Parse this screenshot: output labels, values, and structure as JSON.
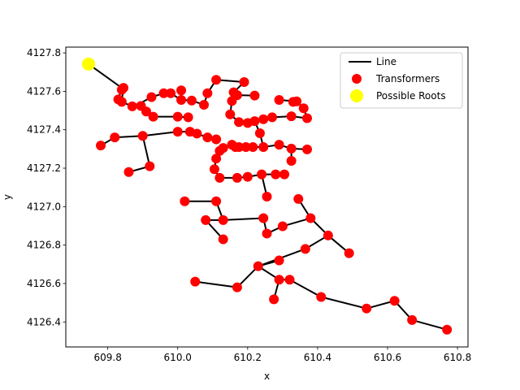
{
  "chart_data": {
    "type": "scatter",
    "title": "",
    "xlabel": "x",
    "ylabel": "y",
    "xlim": [
      609.68,
      610.83
    ],
    "ylim": [
      4126.27,
      4127.83
    ],
    "xticks": [
      609.8,
      610.0,
      610.2,
      610.4,
      610.6,
      610.8
    ],
    "xtick_labels": [
      "609.8",
      "610.0",
      "610.2",
      "610.4",
      "610.6",
      "610.8"
    ],
    "yticks": [
      4126.4,
      4126.6,
      4126.8,
      4127.0,
      4127.2,
      4127.4,
      4127.6,
      4127.8
    ],
    "ytick_labels": [
      "4126.4",
      "4126.6",
      "4126.8",
      "4127.0",
      "4127.2",
      "4127.4",
      "4127.6",
      "4127.8"
    ],
    "grid": false,
    "legend_position": "upper-right",
    "colors": {
      "line": "#000000",
      "transformers": "#ff0000",
      "roots": "#ffff00"
    },
    "legend": [
      {
        "label": "Line",
        "kind": "line",
        "color": "#000000"
      },
      {
        "label": "Transformers",
        "kind": "marker",
        "color": "#ff0000"
      },
      {
        "label": "Possible Roots",
        "kind": "marker",
        "color": "#ffff00"
      }
    ],
    "lines": [
      [
        [
          609.745,
          4127.742
        ],
        [
          609.84,
          4127.618
        ],
        [
          609.83,
          4127.558
        ],
        [
          609.84,
          4127.545
        ],
        [
          609.87,
          4127.522
        ],
        [
          609.895,
          4127.524
        ],
        [
          609.91,
          4127.495
        ],
        [
          609.93,
          4127.468
        ],
        [
          610.0,
          4127.468
        ],
        [
          610.03,
          4127.465
        ]
      ],
      [
        [
          609.845,
          4127.608
        ],
        [
          609.84,
          4127.558
        ]
      ],
      [
        [
          609.87,
          4127.522
        ],
        [
          609.9,
          4127.545
        ],
        [
          609.925,
          4127.57
        ],
        [
          609.96,
          4127.59
        ],
        [
          609.98,
          4127.59
        ],
        [
          610.01,
          4127.555
        ],
        [
          610.04,
          4127.552
        ],
        [
          610.075,
          4127.53
        ],
        [
          610.085,
          4127.59
        ],
        [
          610.11,
          4127.66
        ],
        [
          610.19,
          4127.648
        ],
        [
          610.16,
          4127.595
        ],
        [
          610.155,
          4127.55
        ],
        [
          610.15,
          4127.48
        ],
        [
          610.175,
          4127.44
        ],
        [
          610.2,
          4127.435
        ],
        [
          610.22,
          4127.445
        ],
        [
          610.245,
          4127.455
        ],
        [
          610.27,
          4127.465
        ],
        [
          610.325,
          4127.47
        ],
        [
          610.37,
          4127.46
        ]
      ],
      [
        [
          610.01,
          4127.605
        ],
        [
          610.01,
          4127.555
        ]
      ],
      [
        [
          610.17,
          4127.58
        ],
        [
          610.22,
          4127.578
        ]
      ],
      [
        [
          610.29,
          4127.555
        ],
        [
          610.34,
          4127.548
        ],
        [
          610.36,
          4127.512
        ],
        [
          610.37,
          4127.46
        ]
      ],
      [
        [
          610.33,
          4127.545
        ],
        [
          610.34,
          4127.548
        ]
      ],
      [
        [
          610.22,
          4127.445
        ],
        [
          610.235,
          4127.382
        ],
        [
          610.245,
          4127.31
        ],
        [
          610.215,
          4127.31
        ],
        [
          610.195,
          4127.31
        ],
        [
          610.175,
          4127.31
        ],
        [
          610.165,
          4127.31
        ],
        [
          610.155,
          4127.322
        ],
        [
          610.13,
          4127.305
        ],
        [
          610.12,
          4127.29
        ],
        [
          610.11,
          4127.25
        ],
        [
          610.105,
          4127.195
        ],
        [
          610.12,
          4127.15
        ],
        [
          610.17,
          4127.15
        ],
        [
          610.2,
          4127.155
        ],
        [
          610.24,
          4127.168
        ],
        [
          610.28,
          4127.168
        ],
        [
          610.305,
          4127.168
        ]
      ],
      [
        [
          610.245,
          4127.31
        ],
        [
          610.29,
          4127.322
        ],
        [
          610.325,
          4127.302
        ],
        [
          610.37,
          4127.298
        ]
      ],
      [
        [
          610.325,
          4127.302
        ],
        [
          610.325,
          4127.238
        ]
      ],
      [
        [
          609.78,
          4127.318
        ],
        [
          609.82,
          4127.36
        ],
        [
          609.9,
          4127.368
        ],
        [
          610.0,
          4127.39
        ],
        [
          610.035,
          4127.39
        ],
        [
          610.055,
          4127.38
        ],
        [
          610.085,
          4127.36
        ],
        [
          610.11,
          4127.35
        ]
      ],
      [
        [
          609.9,
          4127.368
        ],
        [
          609.92,
          4127.21
        ],
        [
          609.86,
          4127.18
        ]
      ],
      [
        [
          610.24,
          4127.168
        ],
        [
          610.255,
          4127.052
        ]
      ],
      [
        [
          610.02,
          4127.028
        ],
        [
          610.11,
          4127.028
        ],
        [
          610.13,
          4126.93
        ],
        [
          610.245,
          4126.94
        ],
        [
          610.255,
          4126.86
        ],
        [
          610.3,
          4126.898
        ],
        [
          610.38,
          4126.94
        ],
        [
          610.43,
          4126.85
        ],
        [
          610.49,
          4126.758
        ]
      ],
      [
        [
          610.345,
          4127.04
        ],
        [
          610.38,
          4126.94
        ]
      ],
      [
        [
          610.08,
          4126.93
        ],
        [
          610.13,
          4126.93
        ]
      ],
      [
        [
          610.08,
          4126.93
        ],
        [
          610.13,
          4126.83
        ]
      ],
      [
        [
          610.43,
          4126.85
        ],
        [
          610.365,
          4126.78
        ],
        [
          610.23,
          4126.69
        ],
        [
          610.17,
          4126.58
        ],
        [
          610.05,
          4126.61
        ]
      ],
      [
        [
          610.23,
          4126.69
        ],
        [
          610.29,
          4126.72
        ]
      ],
      [
        [
          610.23,
          4126.69
        ],
        [
          610.29,
          4126.62
        ],
        [
          610.32,
          4126.62
        ],
        [
          610.41,
          4126.53
        ],
        [
          610.54,
          4126.47
        ],
        [
          610.62,
          4126.51
        ],
        [
          610.67,
          4126.41
        ],
        [
          610.77,
          4126.36
        ]
      ],
      [
        [
          610.29,
          4126.62
        ],
        [
          610.275,
          4126.518
        ]
      ]
    ],
    "transformers": {
      "x": [
        609.845,
        609.84,
        609.83,
        609.84,
        609.87,
        609.895,
        609.91,
        609.93,
        610.0,
        610.03,
        609.925,
        609.96,
        609.98,
        610.01,
        610.01,
        610.04,
        610.075,
        610.085,
        610.11,
        610.19,
        610.16,
        610.155,
        610.15,
        610.175,
        610.2,
        610.22,
        610.245,
        610.27,
        610.325,
        610.37,
        610.17,
        610.22,
        610.29,
        610.33,
        610.34,
        610.36,
        610.235,
        610.245,
        610.215,
        610.195,
        610.175,
        610.165,
        610.155,
        610.13,
        610.12,
        610.11,
        610.105,
        610.12,
        610.17,
        610.2,
        610.24,
        610.28,
        610.305,
        610.29,
        610.325,
        610.37,
        610.325,
        609.78,
        609.82,
        609.9,
        610.0,
        610.035,
        610.055,
        610.085,
        610.11,
        609.92,
        609.86,
        610.255,
        610.02,
        610.11,
        610.13,
        610.245,
        610.255,
        610.3,
        610.38,
        610.43,
        610.49,
        610.345,
        610.08,
        610.13,
        610.365,
        610.23,
        610.17,
        610.05,
        610.29,
        610.29,
        610.32,
        610.41,
        610.54,
        610.62,
        610.67,
        610.77,
        610.275
      ],
      "y": [
        4127.618,
        4127.608,
        4127.558,
        4127.545,
        4127.522,
        4127.524,
        4127.495,
        4127.468,
        4127.468,
        4127.465,
        4127.57,
        4127.59,
        4127.59,
        4127.605,
        4127.555,
        4127.552,
        4127.53,
        4127.59,
        4127.66,
        4127.648,
        4127.595,
        4127.55,
        4127.48,
        4127.44,
        4127.435,
        4127.445,
        4127.455,
        4127.465,
        4127.47,
        4127.46,
        4127.58,
        4127.578,
        4127.555,
        4127.545,
        4127.548,
        4127.512,
        4127.382,
        4127.31,
        4127.31,
        4127.31,
        4127.31,
        4127.31,
        4127.322,
        4127.305,
        4127.29,
        4127.25,
        4127.195,
        4127.15,
        4127.15,
        4127.155,
        4127.168,
        4127.168,
        4127.168,
        4127.322,
        4127.302,
        4127.298,
        4127.238,
        4127.318,
        4127.36,
        4127.368,
        4127.39,
        4127.39,
        4127.38,
        4127.36,
        4127.35,
        4127.21,
        4127.18,
        4127.052,
        4127.028,
        4127.028,
        4126.93,
        4126.94,
        4126.86,
        4126.898,
        4126.94,
        4126.85,
        4126.758,
        4127.04,
        4126.93,
        4126.83,
        4126.78,
        4126.69,
        4126.58,
        4126.61,
        4126.72,
        4126.62,
        4126.62,
        4126.53,
        4126.47,
        4126.51,
        4126.41,
        4126.36,
        4126.518
      ]
    },
    "roots": {
      "x": [
        609.745
      ],
      "y": [
        4127.742
      ]
    }
  }
}
